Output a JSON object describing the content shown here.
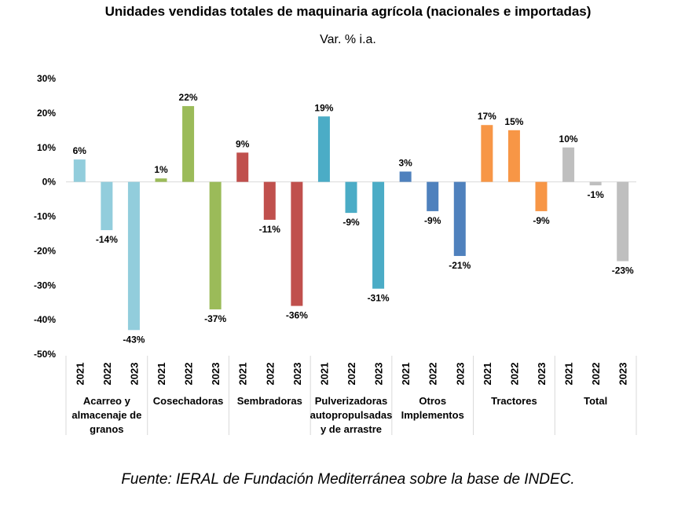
{
  "title": "Unidades vendidas totales de maquinaria agrícola (nacionales e importadas)",
  "subtitle": "Var. % i.a.",
  "source": "Fuente: IERAL de Fundación Mediterránea sobre la base de INDEC.",
  "chart_data": {
    "type": "bar",
    "ylim": [
      -50,
      30
    ],
    "yticks": [
      30,
      20,
      10,
      0,
      -10,
      -20,
      -30,
      -40,
      -50
    ],
    "ytick_labels": [
      "30%",
      "20%",
      "10%",
      "0%",
      "-10%",
      "-20%",
      "-30%",
      "-40%",
      "-50%"
    ],
    "years": [
      "2021",
      "2022",
      "2023"
    ],
    "grid": false,
    "groups": [
      {
        "name": "Acarreo y almacenaje de granos",
        "name_lines": [
          "Acarreo y",
          "almacenaje de",
          "granos"
        ],
        "color": "#92cddc",
        "values": [
          6.5,
          -14,
          -43
        ],
        "labels": [
          "6%",
          "-14%",
          "-43%"
        ]
      },
      {
        "name": "Cosechadoras",
        "name_lines": [
          "Cosechadoras"
        ],
        "color": "#9bbb59",
        "values": [
          1,
          22,
          -37
        ],
        "labels": [
          "1%",
          "22%",
          "-37%"
        ]
      },
      {
        "name": "Sembradoras",
        "name_lines": [
          "Sembradoras"
        ],
        "color": "#c0504d",
        "values": [
          8.5,
          -11,
          -36
        ],
        "labels": [
          "9%",
          "-11%",
          "-36%"
        ]
      },
      {
        "name": "Pulverizadoras autopropulsadas y de arrastre",
        "name_lines": [
          "Pulverizadoras",
          "autopropulsadas",
          "y de arrastre"
        ],
        "color": "#4bacc6",
        "values": [
          19,
          -9,
          -31
        ],
        "labels": [
          "19%",
          "-9%",
          "-31%"
        ]
      },
      {
        "name": "Otros Implementos",
        "name_lines": [
          "Otros",
          "Implementos"
        ],
        "color": "#4f81bd",
        "values": [
          3,
          -8.5,
          -21.5
        ],
        "labels": [
          "3%",
          "-9%",
          "-21%"
        ]
      },
      {
        "name": "Tractores",
        "name_lines": [
          "Tractores"
        ],
        "color": "#f79646",
        "values": [
          16.5,
          15,
          -8.5
        ],
        "labels": [
          "17%",
          "15%",
          "-9%"
        ]
      },
      {
        "name": "Total",
        "name_lines": [
          "Total"
        ],
        "color": "#bfbfbf",
        "values": [
          10,
          -1,
          -23
        ],
        "labels": [
          "10%",
          "-1%",
          "-23%"
        ]
      }
    ]
  }
}
